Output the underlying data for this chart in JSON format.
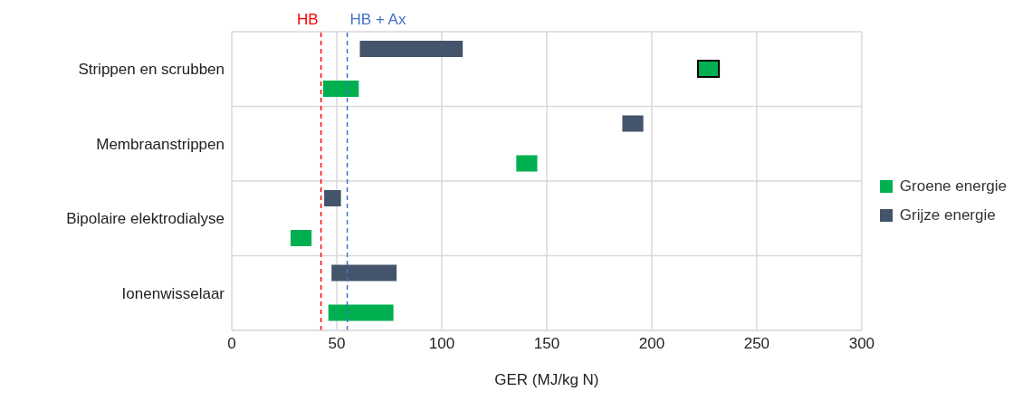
{
  "chart_data": {
    "type": "bar",
    "orientation": "horizontal",
    "xlabel": "GER (MJ/kg N)",
    "categories": [
      "Strippen en scrubben",
      "Membraanstrippen",
      "Bipolaire elektrodialyse",
      "Ionenwisselaar"
    ],
    "series": [
      {
        "name": "Groene energie",
        "color": "#00b050",
        "base": [
          43.5,
          135.5,
          28,
          46
        ],
        "values": [
          17,
          10,
          10,
          31
        ]
      },
      {
        "color": "#00b050",
        "base": [
          222,
          null,
          null,
          null
        ],
        "values": [
          10,
          null,
          null,
          null
        ]
      },
      {
        "name": "Grijze energie",
        "color": "#44546a",
        "base": [
          61,
          186,
          44,
          47.5
        ],
        "values": [
          49,
          10,
          8,
          31
        ]
      }
    ],
    "xlim": [
      0,
      300
    ],
    "xticks": [
      0,
      50,
      100,
      150,
      200,
      250,
      300
    ],
    "grid": true,
    "legend": "right",
    "ref_lines": [
      {
        "axis": "x",
        "value": 42.5,
        "label": "HB",
        "color": "#ff0000",
        "line_style": "dashed"
      },
      {
        "axis": "x",
        "value": 55,
        "label": "HB + Ax",
        "color": "#4472c4",
        "line_style": "dashed"
      }
    ]
  }
}
